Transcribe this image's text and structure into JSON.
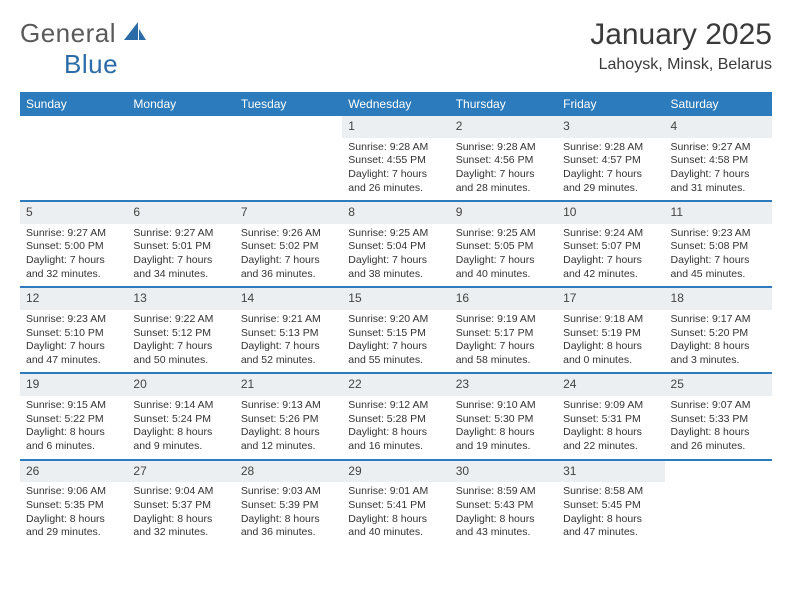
{
  "colors": {
    "header_bg": "#2b7bbd",
    "header_text": "#ffffff",
    "daynum_bg": "#eceff1",
    "week_border": "#2b7bbd",
    "text": "#333333",
    "logo_gray": "#5a5a5a",
    "logo_blue": "#2b6ca8"
  },
  "logo": {
    "part1": "General",
    "part2": "Blue"
  },
  "title": "January 2025",
  "location": "Lahoysk, Minsk, Belarus",
  "days_of_week": [
    "Sunday",
    "Monday",
    "Tuesday",
    "Wednesday",
    "Thursday",
    "Friday",
    "Saturday"
  ],
  "weeks": [
    [
      null,
      null,
      null,
      {
        "n": "1",
        "sr": "9:28 AM",
        "ss": "4:55 PM",
        "dh": "7",
        "dm": "26"
      },
      {
        "n": "2",
        "sr": "9:28 AM",
        "ss": "4:56 PM",
        "dh": "7",
        "dm": "28"
      },
      {
        "n": "3",
        "sr": "9:28 AM",
        "ss": "4:57 PM",
        "dh": "7",
        "dm": "29"
      },
      {
        "n": "4",
        "sr": "9:27 AM",
        "ss": "4:58 PM",
        "dh": "7",
        "dm": "31"
      }
    ],
    [
      {
        "n": "5",
        "sr": "9:27 AM",
        "ss": "5:00 PM",
        "dh": "7",
        "dm": "32"
      },
      {
        "n": "6",
        "sr": "9:27 AM",
        "ss": "5:01 PM",
        "dh": "7",
        "dm": "34"
      },
      {
        "n": "7",
        "sr": "9:26 AM",
        "ss": "5:02 PM",
        "dh": "7",
        "dm": "36"
      },
      {
        "n": "8",
        "sr": "9:25 AM",
        "ss": "5:04 PM",
        "dh": "7",
        "dm": "38"
      },
      {
        "n": "9",
        "sr": "9:25 AM",
        "ss": "5:05 PM",
        "dh": "7",
        "dm": "40"
      },
      {
        "n": "10",
        "sr": "9:24 AM",
        "ss": "5:07 PM",
        "dh": "7",
        "dm": "42"
      },
      {
        "n": "11",
        "sr": "9:23 AM",
        "ss": "5:08 PM",
        "dh": "7",
        "dm": "45"
      }
    ],
    [
      {
        "n": "12",
        "sr": "9:23 AM",
        "ss": "5:10 PM",
        "dh": "7",
        "dm": "47"
      },
      {
        "n": "13",
        "sr": "9:22 AM",
        "ss": "5:12 PM",
        "dh": "7",
        "dm": "50"
      },
      {
        "n": "14",
        "sr": "9:21 AM",
        "ss": "5:13 PM",
        "dh": "7",
        "dm": "52"
      },
      {
        "n": "15",
        "sr": "9:20 AM",
        "ss": "5:15 PM",
        "dh": "7",
        "dm": "55"
      },
      {
        "n": "16",
        "sr": "9:19 AM",
        "ss": "5:17 PM",
        "dh": "7",
        "dm": "58"
      },
      {
        "n": "17",
        "sr": "9:18 AM",
        "ss": "5:19 PM",
        "dh": "8",
        "dm": "0"
      },
      {
        "n": "18",
        "sr": "9:17 AM",
        "ss": "5:20 PM",
        "dh": "8",
        "dm": "3"
      }
    ],
    [
      {
        "n": "19",
        "sr": "9:15 AM",
        "ss": "5:22 PM",
        "dh": "8",
        "dm": "6"
      },
      {
        "n": "20",
        "sr": "9:14 AM",
        "ss": "5:24 PM",
        "dh": "8",
        "dm": "9"
      },
      {
        "n": "21",
        "sr": "9:13 AM",
        "ss": "5:26 PM",
        "dh": "8",
        "dm": "12"
      },
      {
        "n": "22",
        "sr": "9:12 AM",
        "ss": "5:28 PM",
        "dh": "8",
        "dm": "16"
      },
      {
        "n": "23",
        "sr": "9:10 AM",
        "ss": "5:30 PM",
        "dh": "8",
        "dm": "19"
      },
      {
        "n": "24",
        "sr": "9:09 AM",
        "ss": "5:31 PM",
        "dh": "8",
        "dm": "22"
      },
      {
        "n": "25",
        "sr": "9:07 AM",
        "ss": "5:33 PM",
        "dh": "8",
        "dm": "26"
      }
    ],
    [
      {
        "n": "26",
        "sr": "9:06 AM",
        "ss": "5:35 PM",
        "dh": "8",
        "dm": "29"
      },
      {
        "n": "27",
        "sr": "9:04 AM",
        "ss": "5:37 PM",
        "dh": "8",
        "dm": "32"
      },
      {
        "n": "28",
        "sr": "9:03 AM",
        "ss": "5:39 PM",
        "dh": "8",
        "dm": "36"
      },
      {
        "n": "29",
        "sr": "9:01 AM",
        "ss": "5:41 PM",
        "dh": "8",
        "dm": "40"
      },
      {
        "n": "30",
        "sr": "8:59 AM",
        "ss": "5:43 PM",
        "dh": "8",
        "dm": "43"
      },
      {
        "n": "31",
        "sr": "8:58 AM",
        "ss": "5:45 PM",
        "dh": "8",
        "dm": "47"
      },
      null
    ]
  ],
  "labels": {
    "sunrise": "Sunrise:",
    "sunset": "Sunset:",
    "daylight_prefix": "Daylight:",
    "hours_word": "hours",
    "and_word": "and",
    "minutes_word": "minutes."
  }
}
